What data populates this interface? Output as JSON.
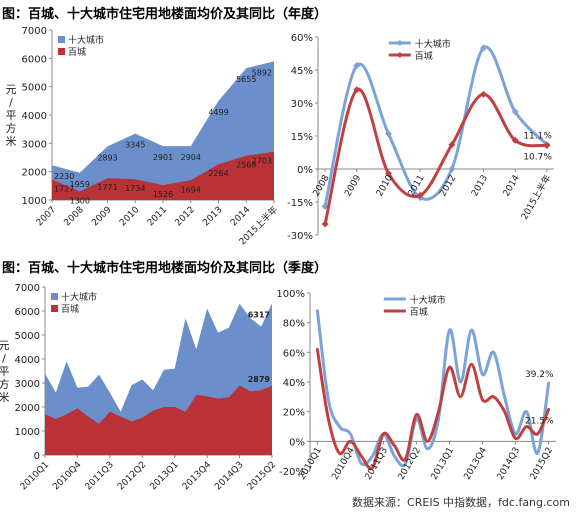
{
  "titles": {
    "annual": "图：百城、十大城市住宅用地楼面均价及其同比（年度）",
    "quarterly": "图：百城、十大城市住宅用地楼面均价及其同比（季度）"
  },
  "source": "数据来源：CREIS 中指数据，fdc.fang.com",
  "colors": {
    "top10": "#6a8fcb",
    "top10_line": "#7ba3d8",
    "hundred": "#b83236",
    "hundred_line": "#c0403f"
  },
  "chart_data": [
    {
      "id": "annual-price",
      "type": "area",
      "ylabel": "元/平方米",
      "ylim": [
        1000,
        7000
      ],
      "yticks": [
        "1000",
        "2000",
        "3000",
        "4000",
        "5000",
        "6000",
        "7000"
      ],
      "categories": [
        "2007",
        "2008",
        "2009",
        "2010",
        "2011",
        "2012",
        "2013",
        "2014",
        "2015上半年"
      ],
      "series": [
        {
          "name": "十大城市",
          "values": [
            2230,
            1959,
            2893,
            3345,
            2901,
            2904,
            4499,
            5655,
            5892
          ],
          "labels": [
            "2230",
            "1959",
            "2893",
            "3345",
            "2901",
            "2904",
            "4499",
            "5655",
            "5892"
          ]
        },
        {
          "name": "百城",
          "values": [
            1727,
            1300,
            1771,
            1734,
            1526,
            1694,
            2264,
            2568,
            2703
          ],
          "labels": [
            "1727",
            "1300",
            "1771",
            "1734",
            "1526",
            "1694",
            "2264",
            "2568",
            "2703"
          ]
        }
      ],
      "legend": "top-left"
    },
    {
      "id": "annual-yoy",
      "type": "line",
      "ylim": [
        -30,
        60
      ],
      "yticks": [
        "-30%",
        "-15%",
        "0%",
        "15%",
        "30%",
        "45%",
        "60%"
      ],
      "categories": [
        "2008",
        "2009",
        "2010",
        "2011",
        "2012",
        "2013",
        "2014",
        "2015上半年"
      ],
      "series": [
        {
          "name": "十大城市",
          "values": [
            -17,
            47,
            16,
            -13,
            0,
            55,
            26,
            11.1
          ]
        },
        {
          "name": "百城",
          "values": [
            -25,
            36,
            -2,
            -12,
            11,
            34,
            13,
            10.7
          ]
        }
      ],
      "annotations": [
        "11.1%",
        "10.7%"
      ],
      "legend": "top-center"
    },
    {
      "id": "quarterly-price",
      "type": "area",
      "ylabel": "元/平方米",
      "ylim": [
        0,
        7000
      ],
      "yticks": [
        "0",
        "1000",
        "2000",
        "3000",
        "4000",
        "5000",
        "6000",
        "7000"
      ],
      "categories": [
        "2010Q1",
        "2010Q2",
        "2010Q3",
        "2010Q4",
        "2011Q1",
        "2011Q2",
        "2011Q3",
        "2011Q4",
        "2012Q1",
        "2012Q2",
        "2012Q3",
        "2012Q4",
        "2013Q1",
        "2013Q2",
        "2013Q3",
        "2013Q4",
        "2014Q1",
        "2014Q2",
        "2014Q3",
        "2014Q4",
        "2015Q1",
        "2015Q2"
      ],
      "xticks_shown": [
        "2010Q1",
        "2010Q4",
        "2011Q3",
        "2012Q2",
        "2013Q1",
        "2013Q4",
        "2014Q3",
        "2015Q2"
      ],
      "series": [
        {
          "name": "十大城市",
          "values": [
            3400,
            2600,
            3900,
            2800,
            2850,
            3350,
            2600,
            1800,
            2900,
            3150,
            2700,
            3550,
            3600,
            5700,
            4400,
            6100,
            5100,
            5300,
            6300,
            5700,
            5350,
            6317
          ]
        },
        {
          "name": "百城",
          "values": [
            1700,
            1500,
            1700,
            1950,
            1600,
            1300,
            1800,
            1600,
            1400,
            1550,
            1850,
            2000,
            2000,
            1800,
            2500,
            2450,
            2350,
            2400,
            2900,
            2650,
            2700,
            2879
          ]
        }
      ],
      "annotations": [
        "6317",
        "2879"
      ],
      "legend": "top-left"
    },
    {
      "id": "quarterly-yoy",
      "type": "line",
      "ylim": [
        -20,
        100
      ],
      "yticks": [
        "-20%",
        "0%",
        "20%",
        "40%",
        "60%",
        "80%",
        "100%"
      ],
      "categories": [
        "2010Q1",
        "2010Q2",
        "2010Q3",
        "2010Q4",
        "2011Q1",
        "2011Q2",
        "2011Q3",
        "2011Q4",
        "2012Q1",
        "2012Q2",
        "2012Q3",
        "2012Q4",
        "2013Q1",
        "2013Q2",
        "2013Q3",
        "2013Q4",
        "2014Q1",
        "2014Q2",
        "2014Q3",
        "2014Q4",
        "2015Q1",
        "2015Q2"
      ],
      "xticks_shown": [
        "2010Q1",
        "2010Q4",
        "2011Q3",
        "2012Q2",
        "2013Q1",
        "2013Q4",
        "2014Q3",
        "2015Q2"
      ],
      "series": [
        {
          "name": "十大城市",
          "values": [
            88,
            28,
            10,
            5,
            -15,
            -10,
            5,
            -10,
            -15,
            15,
            -5,
            15,
            75,
            40,
            75,
            45,
            60,
            30,
            5,
            20,
            -8,
            39.2
          ]
        },
        {
          "name": "百城",
          "values": [
            62,
            15,
            -8,
            0,
            -10,
            -18,
            5,
            -3,
            -12,
            18,
            0,
            20,
            50,
            30,
            52,
            28,
            30,
            20,
            2,
            10,
            5,
            21.5
          ]
        }
      ],
      "annotations": [
        "39.2%",
        "21.5%"
      ],
      "legend": "top-center"
    }
  ]
}
